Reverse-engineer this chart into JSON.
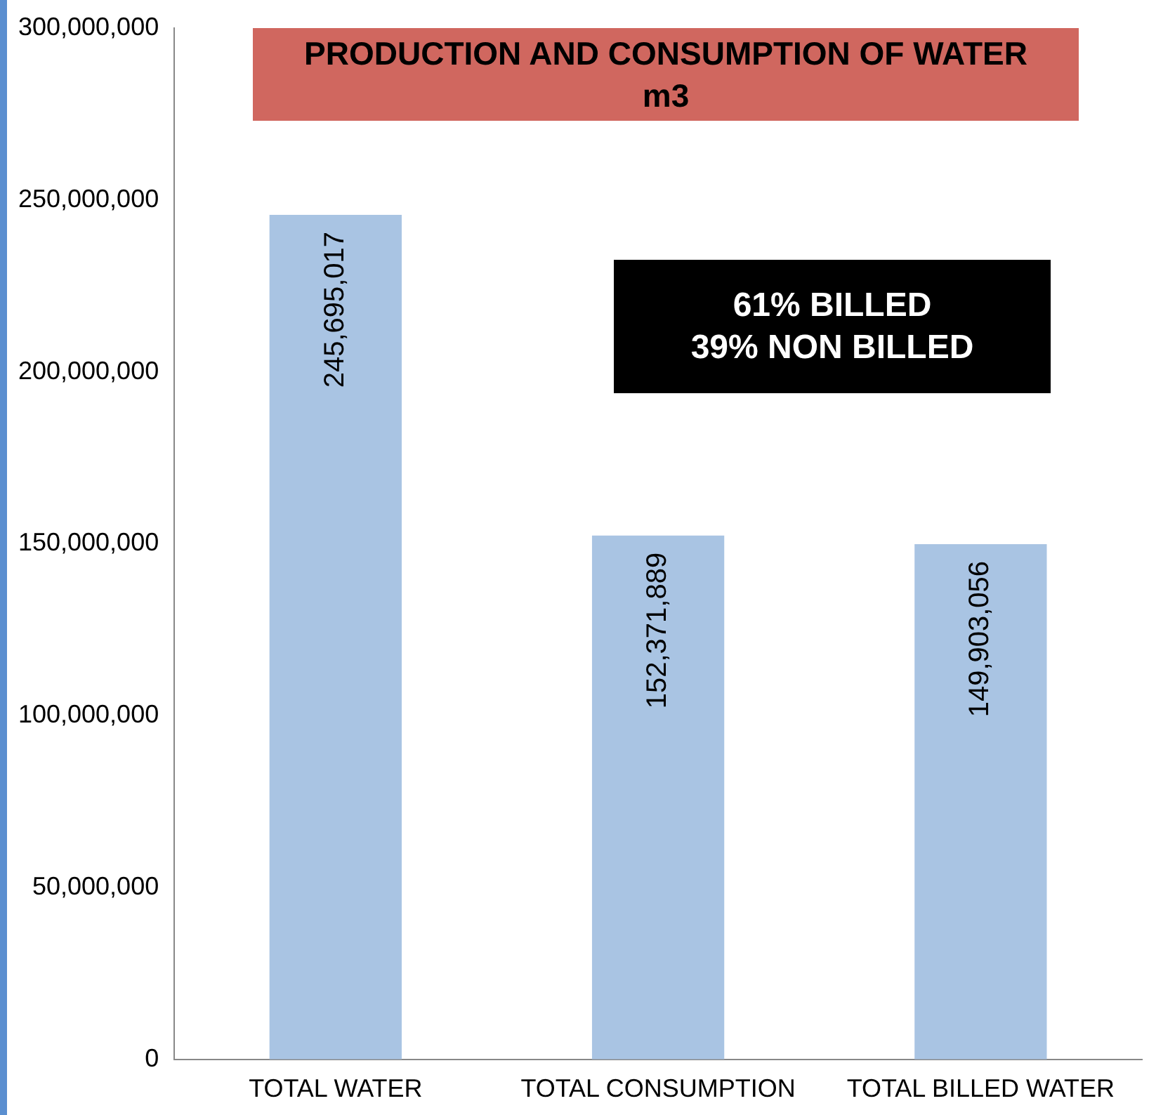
{
  "chart_data": {
    "type": "bar",
    "title": "PRODUCTION AND CONSUMPTION OF WATER m3",
    "categories": [
      "TOTAL WATER",
      "TOTAL CONSUMPTION",
      "TOTAL BILLED WATER"
    ],
    "values": [
      245695017,
      152371889,
      149903056
    ],
    "value_labels": [
      "245,695,017",
      "152,371,889",
      "149,903,056"
    ],
    "color": "#a9c4e3",
    "ylim": [
      0,
      300000000
    ],
    "yticks": [
      0,
      {
        "value": 50000000,
        "label": "50,000,000"
      },
      {
        "value": 100000000,
        "label": "100,000,000"
      },
      {
        "value": 150000000,
        "label": "150,000,000"
      },
      {
        "value": 200000000,
        "label": "200,000,000"
      },
      {
        "value": 250000000,
        "label": "250,000,000"
      },
      {
        "value": 300000000,
        "label": "300,000,000"
      }
    ],
    "grid": false,
    "legend": false,
    "annotations": [
      "61% BILLED",
      "39% NON BILLED"
    ]
  }
}
